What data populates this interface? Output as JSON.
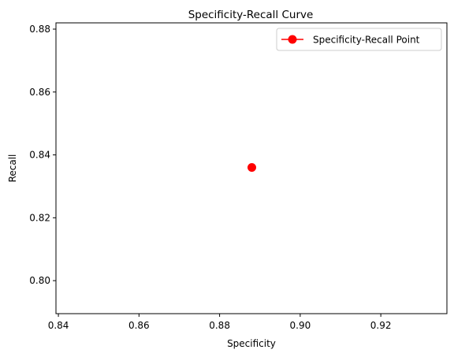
{
  "chart_data": {
    "type": "scatter",
    "title": "Specificity-Recall Curve",
    "xlabel": "Specificity",
    "ylabel": "Recall",
    "xlim": [
      0.8394,
      0.9364
    ],
    "ylim": [
      0.7895,
      0.882
    ],
    "xticks": [
      0.84,
      0.86,
      0.88,
      0.9,
      0.92
    ],
    "xtick_labels": [
      "0.84",
      "0.86",
      "0.88",
      "0.90",
      "0.92"
    ],
    "yticks": [
      0.8,
      0.82,
      0.84,
      0.86,
      0.88
    ],
    "ytick_labels": [
      "0.80",
      "0.82",
      "0.84",
      "0.86",
      "0.88"
    ],
    "grid": false,
    "legend_position": "top-right",
    "series": [
      {
        "name": "Specificity-Recall Point",
        "color": "#ff0000",
        "marker": "circle",
        "points": [
          {
            "x": 0.888,
            "y": 0.836
          }
        ]
      }
    ]
  }
}
